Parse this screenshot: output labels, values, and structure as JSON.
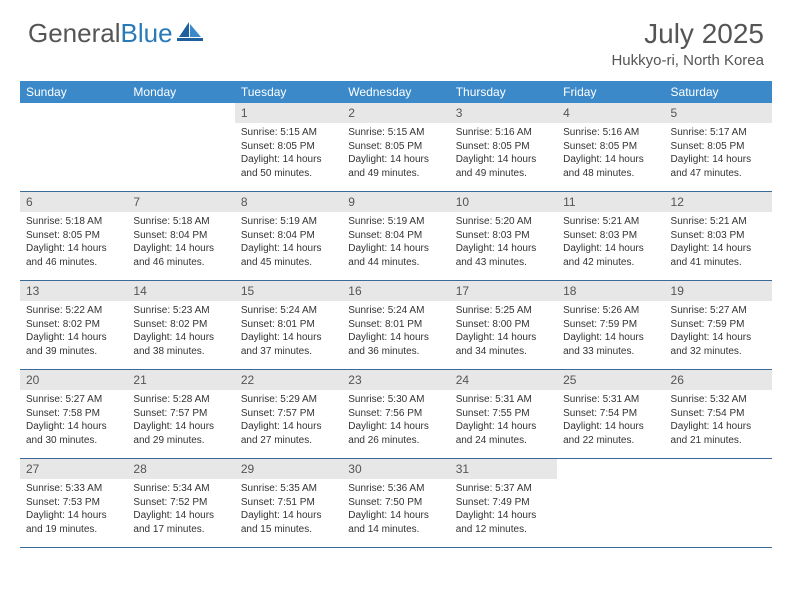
{
  "logo": {
    "text_gray": "General",
    "text_blue": "Blue"
  },
  "title": "July 2025",
  "location": "Hukkyo-ri, North Korea",
  "colors": {
    "header_bg": "#3b89c9",
    "header_text": "#ffffff",
    "daynum_bg": "#e7e7e7",
    "border": "#3b6a9a",
    "logo_gray": "#555555",
    "logo_blue": "#2a7ab8"
  },
  "day_names": [
    "Sunday",
    "Monday",
    "Tuesday",
    "Wednesday",
    "Thursday",
    "Friday",
    "Saturday"
  ],
  "weeks": [
    [
      null,
      null,
      {
        "d": "1",
        "sr": "5:15 AM",
        "ss": "8:05 PM",
        "dl": "14 hours and 50 minutes."
      },
      {
        "d": "2",
        "sr": "5:15 AM",
        "ss": "8:05 PM",
        "dl": "14 hours and 49 minutes."
      },
      {
        "d": "3",
        "sr": "5:16 AM",
        "ss": "8:05 PM",
        "dl": "14 hours and 49 minutes."
      },
      {
        "d": "4",
        "sr": "5:16 AM",
        "ss": "8:05 PM",
        "dl": "14 hours and 48 minutes."
      },
      {
        "d": "5",
        "sr": "5:17 AM",
        "ss": "8:05 PM",
        "dl": "14 hours and 47 minutes."
      }
    ],
    [
      {
        "d": "6",
        "sr": "5:18 AM",
        "ss": "8:05 PM",
        "dl": "14 hours and 46 minutes."
      },
      {
        "d": "7",
        "sr": "5:18 AM",
        "ss": "8:04 PM",
        "dl": "14 hours and 46 minutes."
      },
      {
        "d": "8",
        "sr": "5:19 AM",
        "ss": "8:04 PM",
        "dl": "14 hours and 45 minutes."
      },
      {
        "d": "9",
        "sr": "5:19 AM",
        "ss": "8:04 PM",
        "dl": "14 hours and 44 minutes."
      },
      {
        "d": "10",
        "sr": "5:20 AM",
        "ss": "8:03 PM",
        "dl": "14 hours and 43 minutes."
      },
      {
        "d": "11",
        "sr": "5:21 AM",
        "ss": "8:03 PM",
        "dl": "14 hours and 42 minutes."
      },
      {
        "d": "12",
        "sr": "5:21 AM",
        "ss": "8:03 PM",
        "dl": "14 hours and 41 minutes."
      }
    ],
    [
      {
        "d": "13",
        "sr": "5:22 AM",
        "ss": "8:02 PM",
        "dl": "14 hours and 39 minutes."
      },
      {
        "d": "14",
        "sr": "5:23 AM",
        "ss": "8:02 PM",
        "dl": "14 hours and 38 minutes."
      },
      {
        "d": "15",
        "sr": "5:24 AM",
        "ss": "8:01 PM",
        "dl": "14 hours and 37 minutes."
      },
      {
        "d": "16",
        "sr": "5:24 AM",
        "ss": "8:01 PM",
        "dl": "14 hours and 36 minutes."
      },
      {
        "d": "17",
        "sr": "5:25 AM",
        "ss": "8:00 PM",
        "dl": "14 hours and 34 minutes."
      },
      {
        "d": "18",
        "sr": "5:26 AM",
        "ss": "7:59 PM",
        "dl": "14 hours and 33 minutes."
      },
      {
        "d": "19",
        "sr": "5:27 AM",
        "ss": "7:59 PM",
        "dl": "14 hours and 32 minutes."
      }
    ],
    [
      {
        "d": "20",
        "sr": "5:27 AM",
        "ss": "7:58 PM",
        "dl": "14 hours and 30 minutes."
      },
      {
        "d": "21",
        "sr": "5:28 AM",
        "ss": "7:57 PM",
        "dl": "14 hours and 29 minutes."
      },
      {
        "d": "22",
        "sr": "5:29 AM",
        "ss": "7:57 PM",
        "dl": "14 hours and 27 minutes."
      },
      {
        "d": "23",
        "sr": "5:30 AM",
        "ss": "7:56 PM",
        "dl": "14 hours and 26 minutes."
      },
      {
        "d": "24",
        "sr": "5:31 AM",
        "ss": "7:55 PM",
        "dl": "14 hours and 24 minutes."
      },
      {
        "d": "25",
        "sr": "5:31 AM",
        "ss": "7:54 PM",
        "dl": "14 hours and 22 minutes."
      },
      {
        "d": "26",
        "sr": "5:32 AM",
        "ss": "7:54 PM",
        "dl": "14 hours and 21 minutes."
      }
    ],
    [
      {
        "d": "27",
        "sr": "5:33 AM",
        "ss": "7:53 PM",
        "dl": "14 hours and 19 minutes."
      },
      {
        "d": "28",
        "sr": "5:34 AM",
        "ss": "7:52 PM",
        "dl": "14 hours and 17 minutes."
      },
      {
        "d": "29",
        "sr": "5:35 AM",
        "ss": "7:51 PM",
        "dl": "14 hours and 15 minutes."
      },
      {
        "d": "30",
        "sr": "5:36 AM",
        "ss": "7:50 PM",
        "dl": "14 hours and 14 minutes."
      },
      {
        "d": "31",
        "sr": "5:37 AM",
        "ss": "7:49 PM",
        "dl": "14 hours and 12 minutes."
      },
      null,
      null
    ]
  ],
  "labels": {
    "sunrise": "Sunrise:",
    "sunset": "Sunset:",
    "daylight": "Daylight:"
  }
}
